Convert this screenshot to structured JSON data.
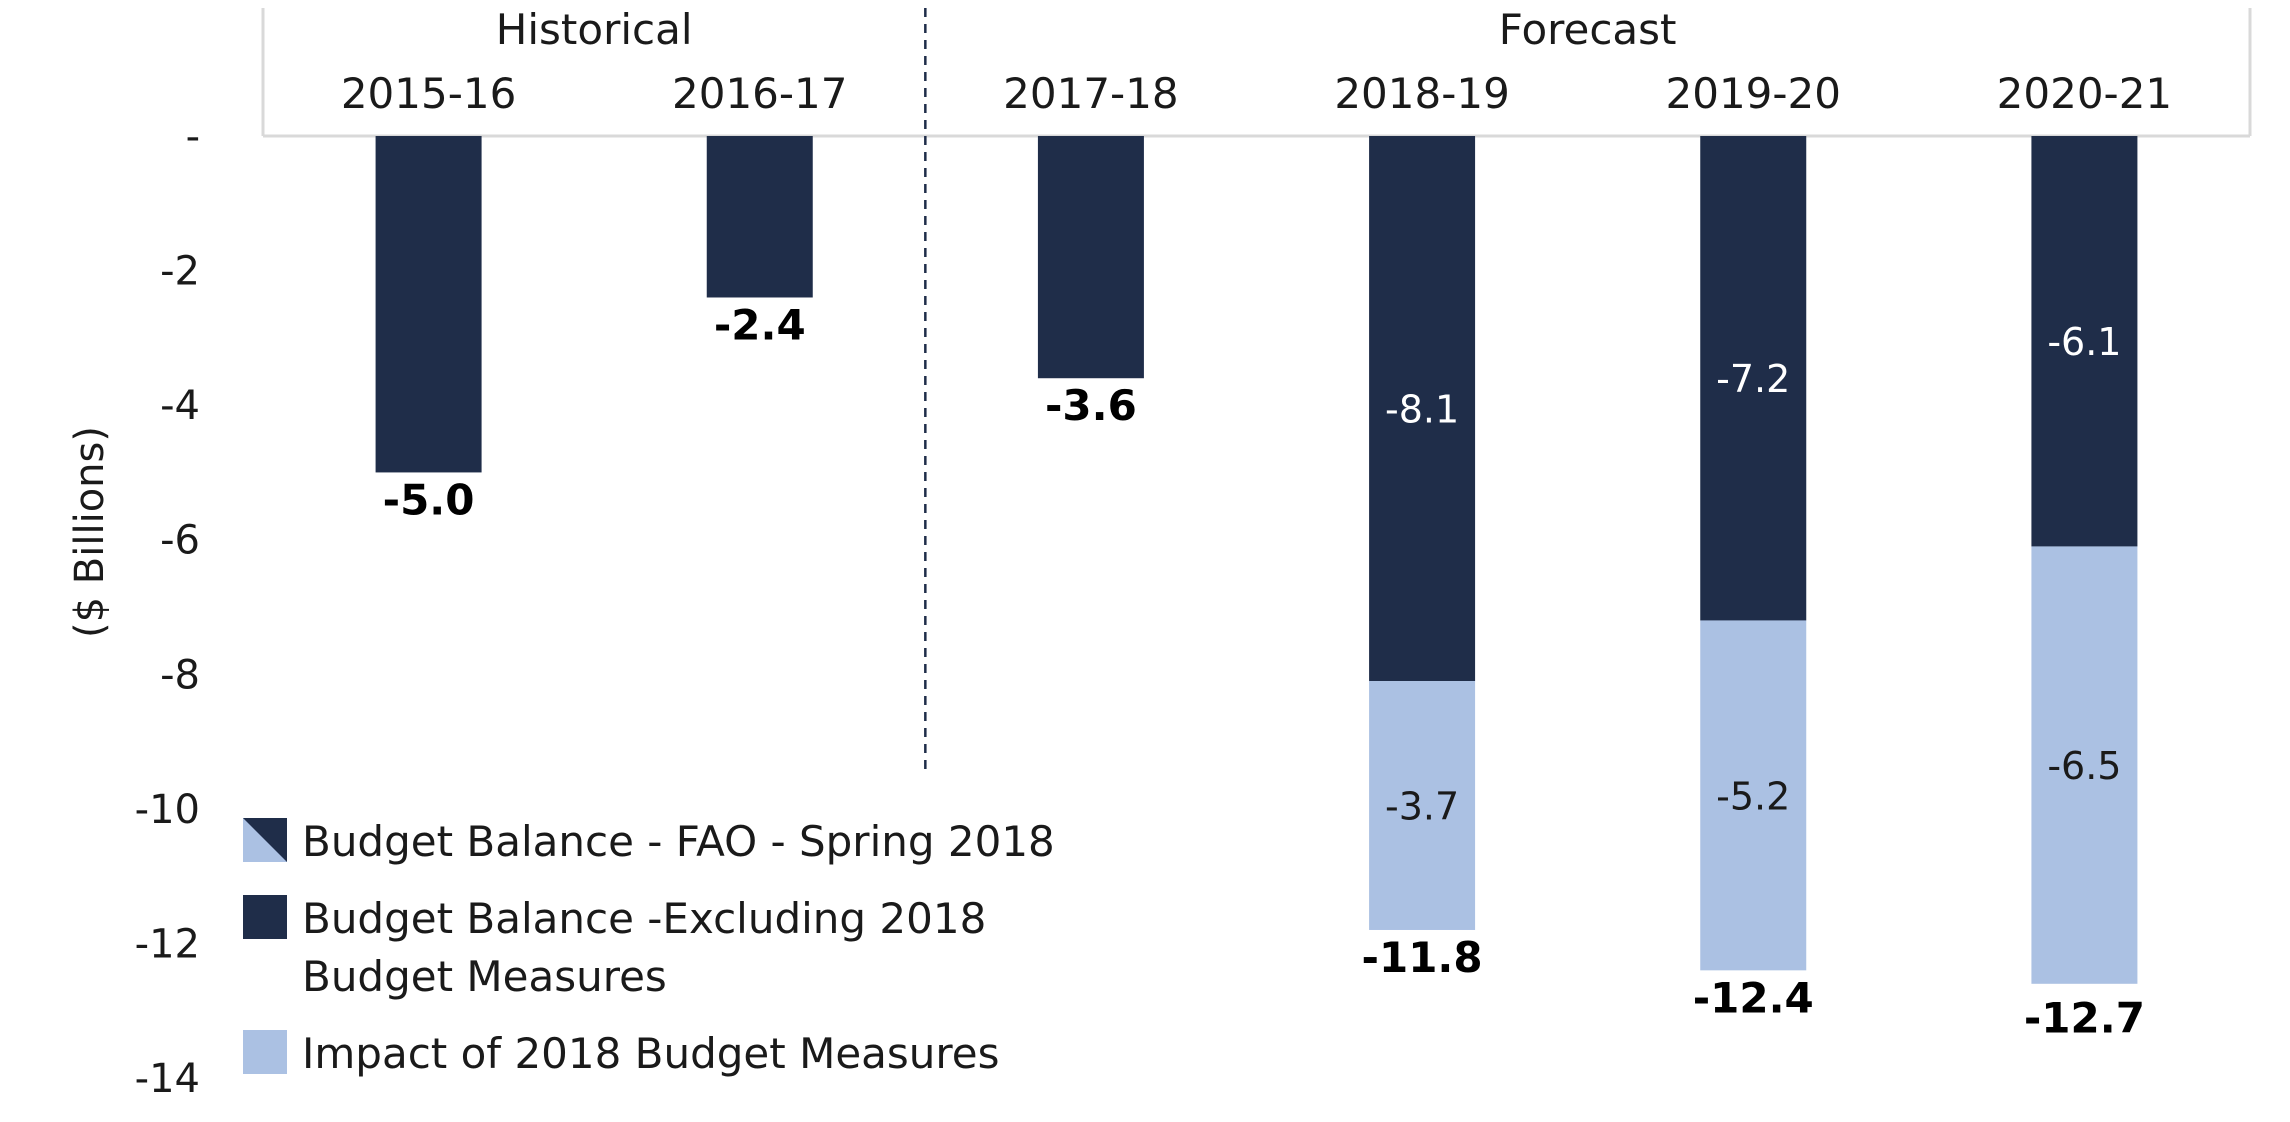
{
  "chart_data": {
    "type": "bar",
    "stacked": true,
    "ylabel": "($ Billions)",
    "ylim": [
      -14,
      0
    ],
    "y_ticks": [
      {
        "value": 0,
        "label": "-"
      },
      {
        "value": -2,
        "label": "-2"
      },
      {
        "value": -4,
        "label": "-4"
      },
      {
        "value": -6,
        "label": "-6"
      },
      {
        "value": -8,
        "label": "-8"
      },
      {
        "value": -10,
        "label": "-10"
      },
      {
        "value": -12,
        "label": "-12"
      },
      {
        "value": -14,
        "label": "-14"
      }
    ],
    "groups": [
      {
        "label": "Historical",
        "categories": [
          "2015-16",
          "2016-17"
        ]
      },
      {
        "label": "Forecast",
        "categories": [
          "2017-18",
          "2018-19",
          "2019-20",
          "2020-21"
        ]
      }
    ],
    "categories": [
      "2015-16",
      "2016-17",
      "2017-18",
      "2018-19",
      "2019-20",
      "2020-21"
    ],
    "series": [
      {
        "name": "Budget Balance -Excluding 2018 Budget Measures",
        "color": "#1f2d49",
        "values": [
          -5.0,
          -2.4,
          -3.6,
          -8.1,
          -7.2,
          -6.1
        ],
        "labels": [
          null,
          null,
          null,
          "-8.1",
          "-7.2",
          "-6.1"
        ]
      },
      {
        "name": "Impact of 2018 Budget Measures",
        "color": "#abc1e3",
        "values": [
          0,
          0,
          0,
          -3.7,
          -5.2,
          -6.5
        ],
        "labels": [
          null,
          null,
          null,
          "-3.7",
          "-5.2",
          "-6.5"
        ]
      }
    ],
    "totals": {
      "name": "Budget Balance - FAO - Spring 2018",
      "values": [
        -5.0,
        -2.4,
        -3.6,
        -11.8,
        -12.4,
        -12.7
      ],
      "labels": [
        "-5.0",
        "-2.4",
        "-3.6",
        "-11.8",
        "-12.4",
        "-12.7"
      ]
    },
    "legend": {
      "placement": "bottom-left",
      "entries": [
        {
          "lines": [
            "Budget Balance - FAO - Spring 2018"
          ],
          "swatch": "split"
        },
        {
          "lines": [
            "Budget Balance -Excluding 2018",
            "Budget Measures"
          ],
          "swatch": "dark"
        },
        {
          "lines": [
            "Impact of 2018 Budget Measures"
          ],
          "swatch": "light"
        }
      ]
    },
    "colors": {
      "dark": "#1f2d49",
      "light": "#abc1e3",
      "frame": "#d9d9d9",
      "divider": "#1f2d49"
    },
    "grid": false
  }
}
